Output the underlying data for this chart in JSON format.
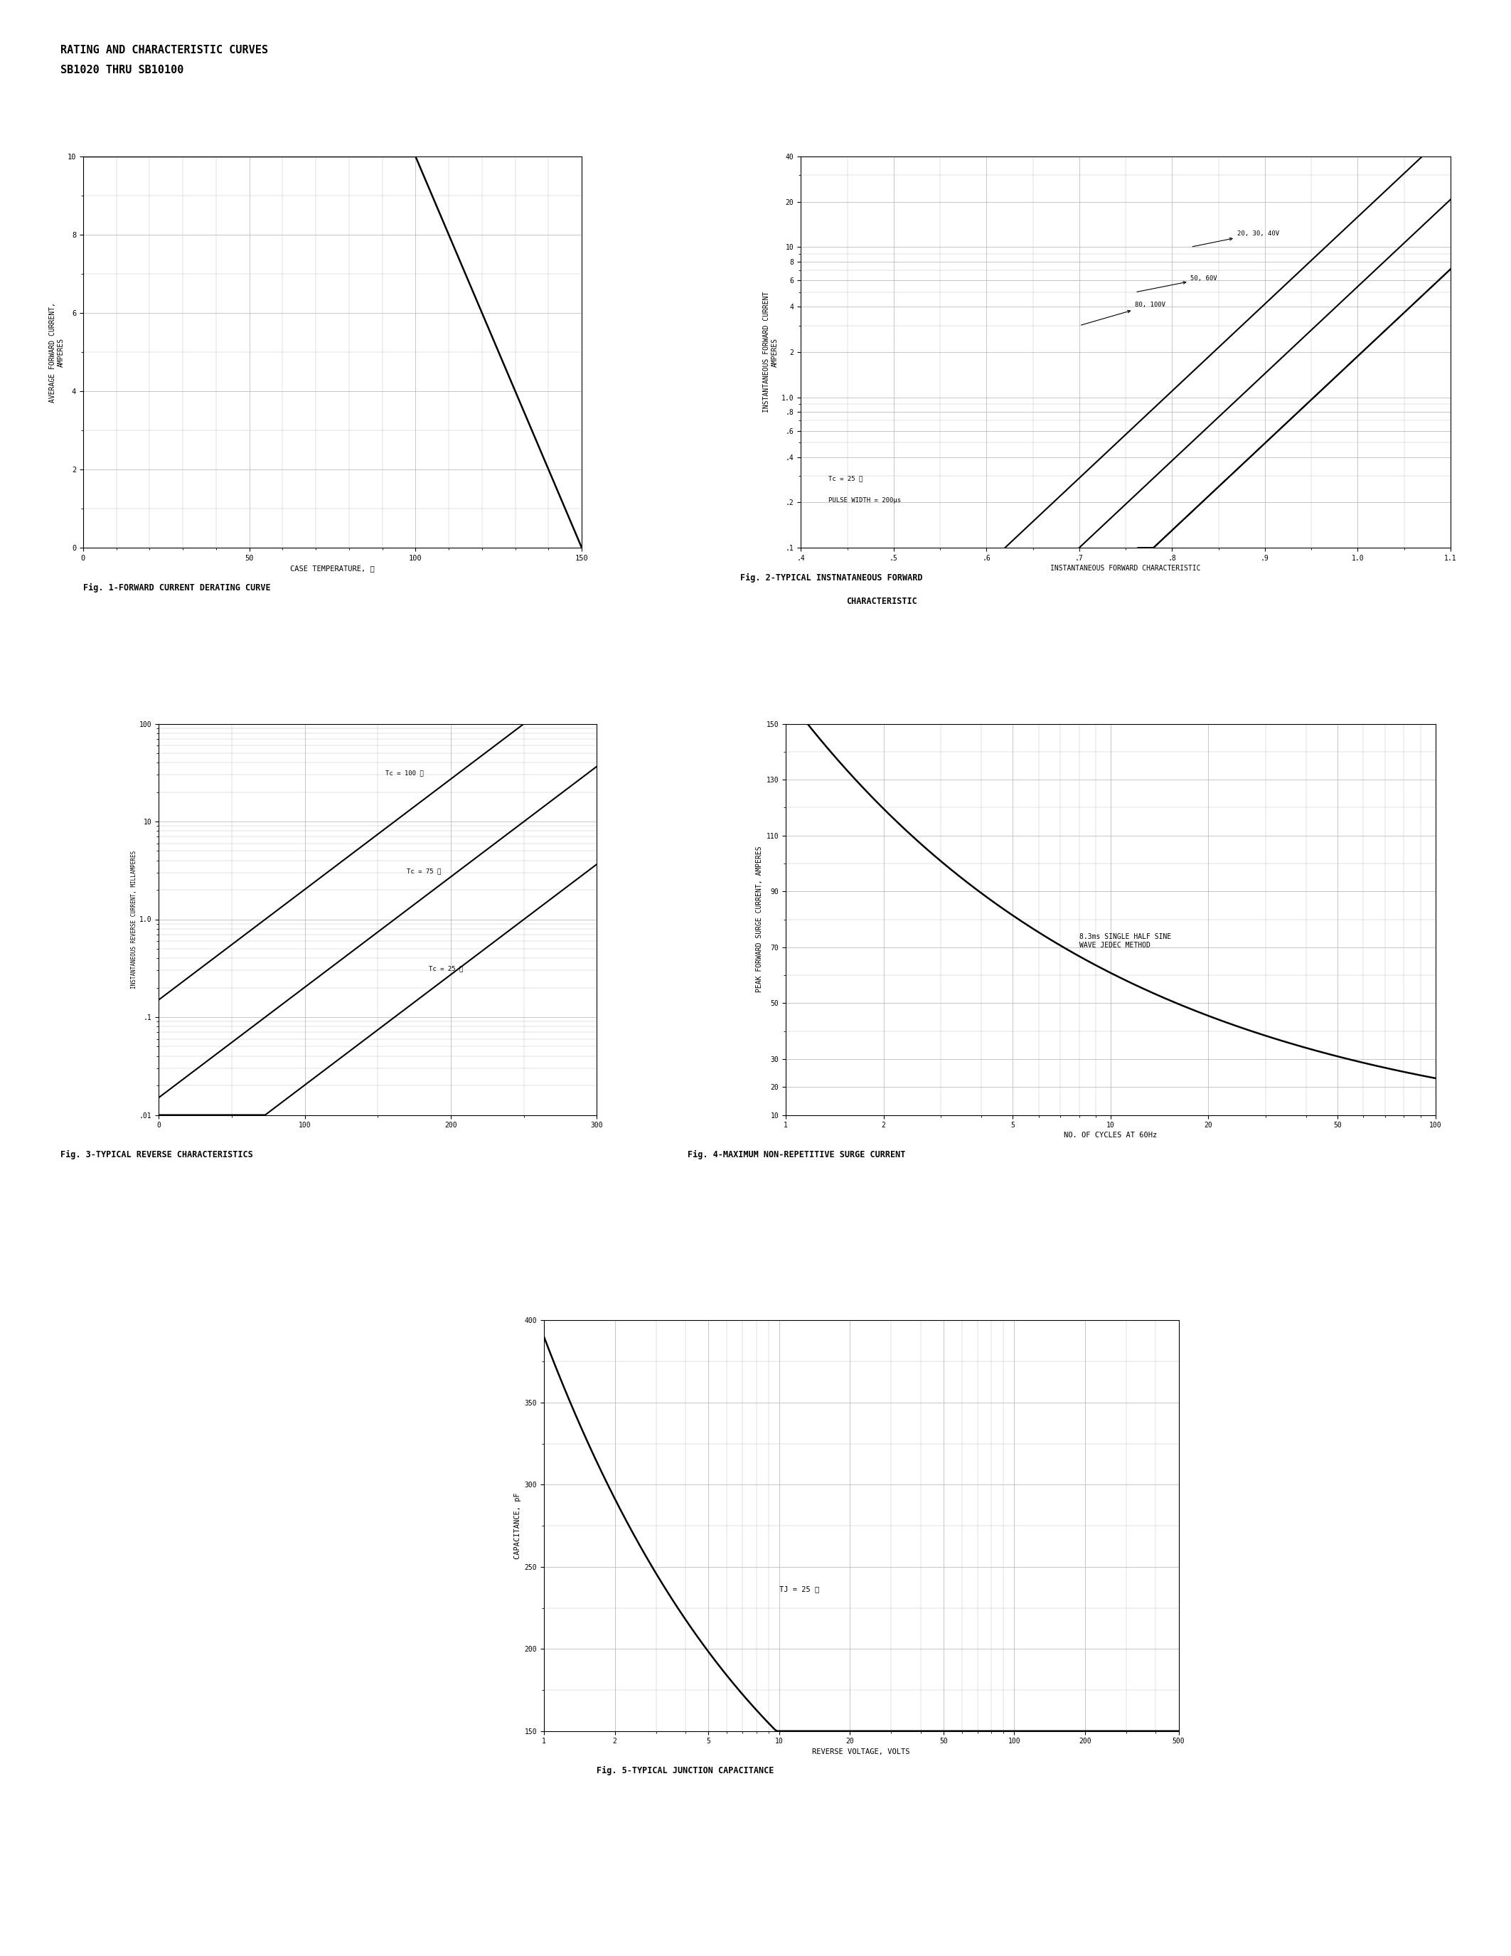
{
  "page_title1": "RATING AND CHARACTERISTIC CURVES",
  "page_title2": "SB1020 THRU SB10100",
  "fig1_title": "Fig. 1-FORWARD CURRENT DERATING CURVE",
  "fig2_title_line1": "Fig. 2-TYPICAL INSTNATANEOUS FORWARD",
  "fig2_title_line2": "CHARACTERISTIC",
  "fig3_title": "Fig. 3-TYPICAL REVERSE CHARACTERISTICS",
  "fig4_title": "Fig. 4-MAXIMUM NON-REPETITIVE SURGE CURRENT",
  "fig5_title": "Fig. 5-TYPICAL JUNCTION CAPACITANCE",
  "bg_color": "#ffffff",
  "line_color": "#000000",
  "grid_color": "#bbbbbb"
}
